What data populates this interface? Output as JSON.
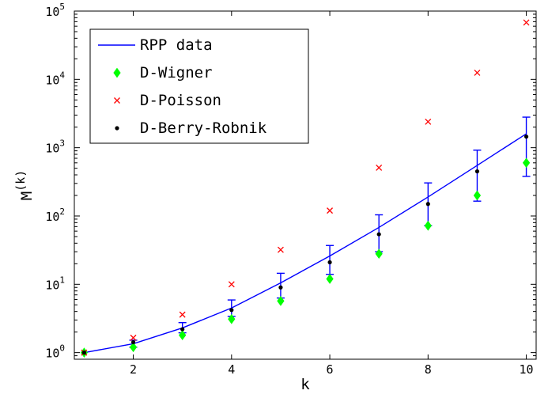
{
  "chart_data": {
    "type": "line",
    "title": "",
    "xlabel": "k",
    "ylabel": "M",
    "ylabel_superscript": "(k)",
    "xlim": [
      0.8,
      10.2
    ],
    "ylim": [
      0.8,
      100000
    ],
    "y_scale": "log",
    "grid": false,
    "legend_position": "top-left",
    "x_ticks": [
      2,
      4,
      6,
      8,
      10
    ],
    "x_tick_labels": [
      "2",
      "4",
      "6",
      "8",
      "10"
    ],
    "y_ticks": [
      1,
      10,
      100,
      1000,
      10000,
      100000
    ],
    "y_tick_labels": [
      {
        "base": "10",
        "exp": "0"
      },
      {
        "base": "10",
        "exp": "1"
      },
      {
        "base": "10",
        "exp": "2"
      },
      {
        "base": "10",
        "exp": "3"
      },
      {
        "base": "10",
        "exp": "4"
      },
      {
        "base": "10",
        "exp": "5"
      }
    ],
    "series": [
      {
        "name": "RPP data",
        "kind": "line",
        "color": "#0000ff",
        "x": [
          1,
          2,
          3,
          4,
          5,
          6,
          7,
          8,
          9,
          10
        ],
        "y": [
          1.0,
          1.35,
          2.3,
          4.5,
          10.5,
          26,
          68,
          190,
          550,
          1600
        ],
        "error_low": [
          null,
          1.2,
          1.95,
          3.4,
          6.3,
          14,
          30,
          72,
          165,
          380
        ],
        "error_high": [
          null,
          1.52,
          2.75,
          5.9,
          14.5,
          37,
          104,
          305,
          920,
          2800
        ]
      },
      {
        "name": "D-Wigner",
        "kind": "diamond",
        "color": "#00ff00",
        "x": [
          1,
          2,
          3,
          4,
          5,
          6,
          7,
          8,
          9,
          10
        ],
        "y": [
          1.0,
          1.2,
          1.8,
          3.1,
          5.7,
          12,
          28,
          72,
          200,
          600
        ]
      },
      {
        "name": "D-Poisson",
        "kind": "cross",
        "color": "#ff0000",
        "x": [
          1,
          2,
          3,
          4,
          5,
          6,
          7,
          8,
          9,
          10
        ],
        "y": [
          1.0,
          1.65,
          3.6,
          10,
          32,
          120,
          510,
          2400,
          12500,
          68000
        ]
      },
      {
        "name": "D-Berry-Robnik",
        "kind": "dot",
        "color": "#000000",
        "x": [
          1,
          2,
          3,
          4,
          5,
          6,
          7,
          8,
          9,
          10
        ],
        "y": [
          1.0,
          1.42,
          2.2,
          4.2,
          9.0,
          21,
          54,
          150,
          450,
          1450
        ]
      }
    ]
  }
}
